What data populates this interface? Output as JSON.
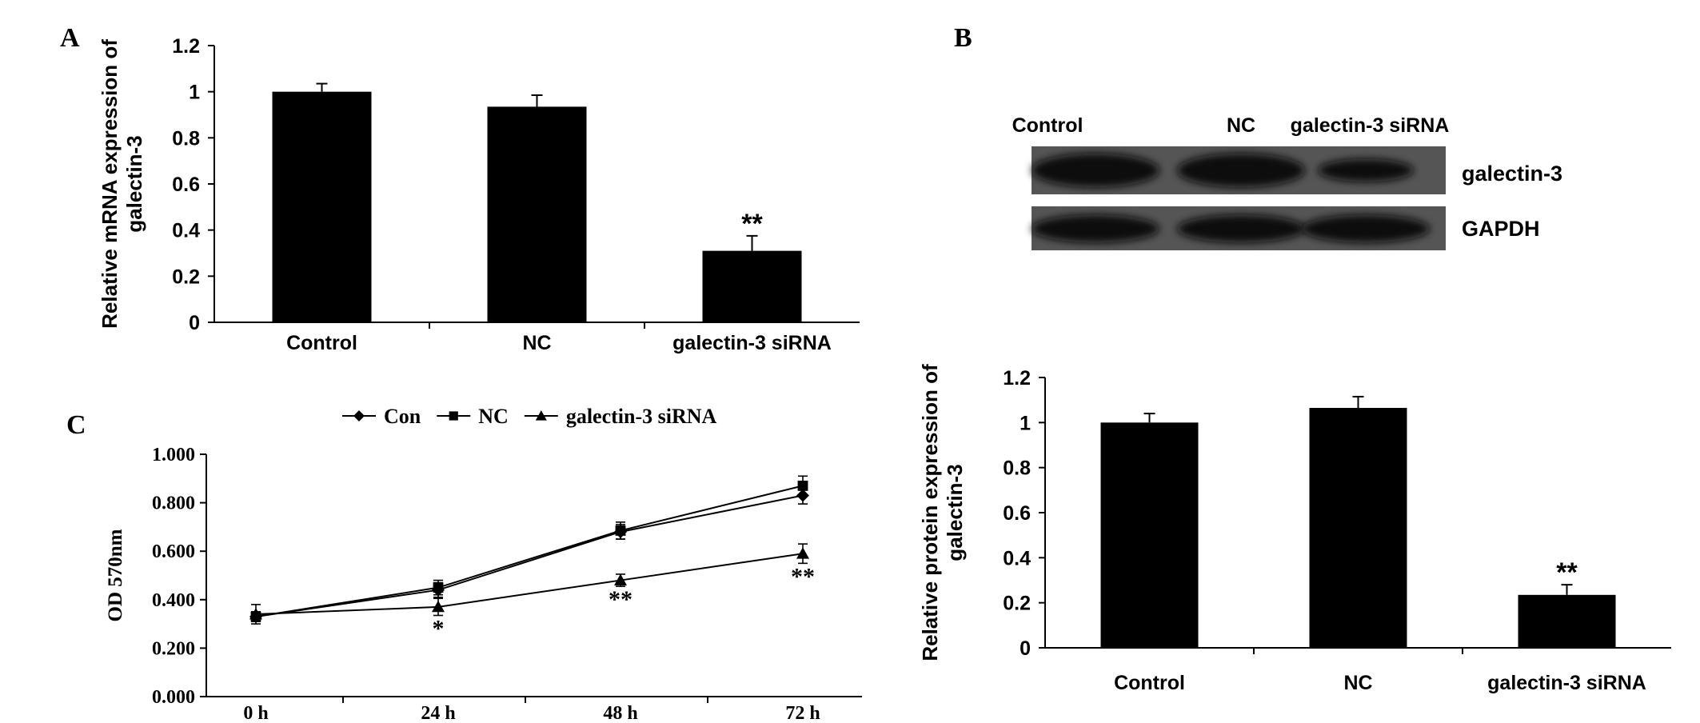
{
  "panel_labels": {
    "a": "A",
    "b": "B",
    "c": "C"
  },
  "blot": {
    "lanes": [
      "Control",
      "NC",
      "galectin-3 siRNA"
    ],
    "rows": [
      {
        "label": "galectin-3",
        "intensity": [
          1.0,
          1.0,
          0.5
        ]
      },
      {
        "label": "GAPDH",
        "intensity": [
          1.0,
          1.0,
          1.0
        ]
      }
    ]
  },
  "chart_data": [
    {
      "panel": "A",
      "type": "bar",
      "categories": [
        "Control",
        "NC",
        "galectin-3 siRNA"
      ],
      "values": [
        1.0,
        0.935,
        0.31
      ],
      "errors": [
        0.035,
        0.05,
        0.065
      ],
      "annotations": [
        "",
        "",
        "**"
      ],
      "ylabel": "Relative mRNA expression of galectin-3",
      "ylim": [
        0,
        1.2
      ],
      "yticks": [
        "0",
        "0.2",
        "0.4",
        "0.6",
        "0.8",
        "1",
        "1.2"
      ],
      "bar_color": "#000000"
    },
    {
      "panel": "B",
      "type": "bar",
      "categories": [
        "Control",
        "NC",
        "galectin-3 siRNA"
      ],
      "values": [
        1.0,
        1.065,
        0.235
      ],
      "errors": [
        0.04,
        0.05,
        0.045
      ],
      "annotations": [
        "",
        "",
        "**"
      ],
      "ylabel": "Relative protein expression of galectin-3",
      "ylim": [
        0,
        1.2
      ],
      "yticks": [
        "0",
        "0.2",
        "0.4",
        "0.6",
        "0.8",
        "1",
        "1.2"
      ],
      "bar_color": "#000000"
    },
    {
      "panel": "C",
      "type": "line",
      "categories": [
        "0  h",
        "24  h",
        "48  h",
        "72  h"
      ],
      "ylabel": "OD 570nm",
      "ylim": [
        0,
        1.0
      ],
      "yticks": [
        "0.000",
        "0.200",
        "0.400",
        "0.600",
        "0.800",
        "1.000"
      ],
      "legend_position": "top",
      "series": [
        {
          "name": "Con",
          "marker": "diamond",
          "values": [
            0.33,
            0.44,
            0.68,
            0.83
          ],
          "errors": [
            0.02,
            0.03,
            0.03,
            0.035
          ]
        },
        {
          "name": "NC",
          "marker": "square",
          "values": [
            0.33,
            0.45,
            0.685,
            0.87
          ],
          "errors": [
            0.02,
            0.03,
            0.035,
            0.04
          ]
        },
        {
          "name": "galectin-3 siRNA",
          "marker": "triangle",
          "values": [
            0.34,
            0.37,
            0.48,
            0.59
          ],
          "errors": [
            0.04,
            0.035,
            0.025,
            0.04
          ]
        }
      ],
      "annotations": [
        "",
        "*",
        "**",
        "**"
      ]
    }
  ]
}
